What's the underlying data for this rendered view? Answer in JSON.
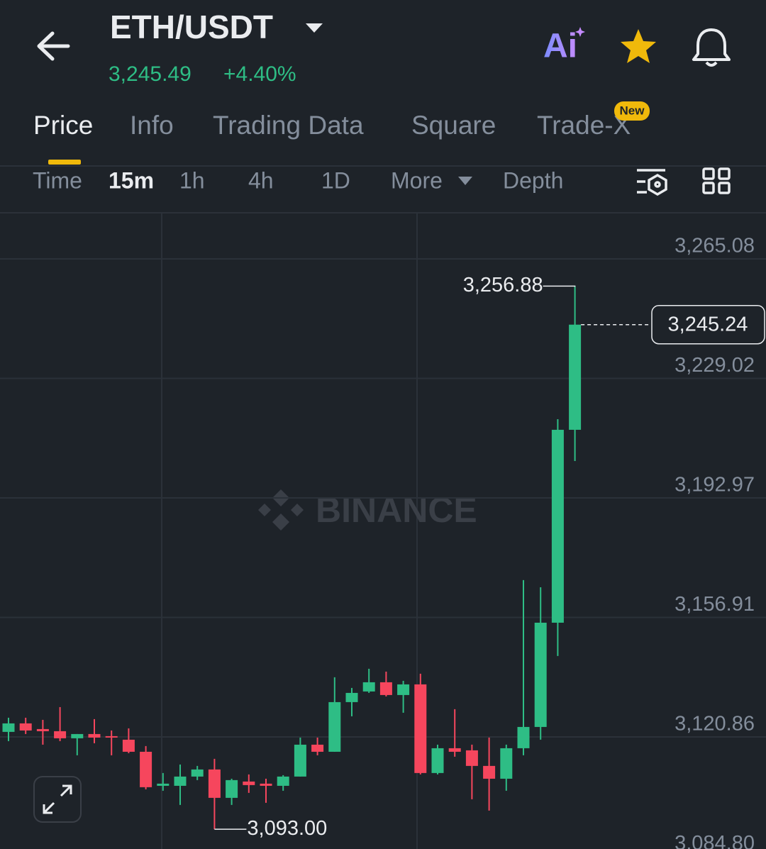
{
  "header": {
    "pair": "ETH/USDT",
    "price": "3,245.49",
    "change": "+4.40%",
    "ai": "Ai"
  },
  "tabs": {
    "items": [
      "Price",
      "Info",
      "Trading Data",
      "Square",
      "Trade-X"
    ],
    "badge": "New"
  },
  "intervals": [
    "Time",
    "15m",
    "1h",
    "4h",
    "1D",
    "More",
    "Depth"
  ],
  "watermark": "BINANCE",
  "chart_data": {
    "type": "candlestick",
    "up_color": "#2ebd85",
    "down_color": "#f6465d",
    "grid": true,
    "ylim": [
      3084.8,
      3278.99
    ],
    "yticks": [
      {
        "value": 3265.08,
        "label": "3,265.08"
      },
      {
        "value": 3229.02,
        "label": "3,229.02"
      },
      {
        "value": 3192.97,
        "label": "3,192.97"
      },
      {
        "value": 3156.91,
        "label": "3,156.91"
      },
      {
        "value": 3120.86,
        "label": "3,120.86"
      },
      {
        "value": 3084.8,
        "label": "3,084.80"
      }
    ],
    "open": [
      3122.38,
      3124.94,
      3123.23,
      3122.59,
      3120.45,
      3121.73,
      3121.09,
      3120.02,
      3116.38,
      3106.11,
      3106.11,
      3108.9,
      3111.04,
      3102.48,
      3107.4,
      3106.76,
      3106.11,
      3108.9,
      3118.52,
      3116.38,
      3131.36,
      3134.57,
      3137.35,
      3133.5,
      3136.71,
      3109.97,
      3117.45,
      3116.81,
      3112.11,
      3108.25,
      3117.45,
      3123.87,
      3155.32,
      3213.52
    ],
    "high": [
      3126.65,
      3126.65,
      3126.01,
      3129.86,
      3121.73,
      3126.23,
      3122.8,
      3123.44,
      3118.1,
      3109.97,
      3112.53,
      3112.11,
      3114.25,
      3108.25,
      3109.54,
      3108.25,
      3109.32,
      3120.66,
      3120.66,
      3138.85,
      3135.64,
      3141.42,
      3140.56,
      3137.78,
      3139.92,
      3118.52,
      3129.22,
      3118.52,
      3120.66,
      3118.52,
      3168.16,
      3166.02,
      3216.73,
      3256.88
    ],
    "low": [
      3119.59,
      3121.73,
      3118.52,
      3119.59,
      3115.31,
      3118.95,
      3115.31,
      3115.96,
      3105.05,
      3104.62,
      3100.34,
      3107.83,
      3093.0,
      3100.34,
      3103.98,
      3100.98,
      3104.62,
      3108.9,
      3115.31,
      3116.38,
      3127.08,
      3134.14,
      3133.07,
      3128.15,
      3109.54,
      3109.54,
      3114.89,
      3102.05,
      3098.63,
      3104.62,
      3115.31,
      3120.02,
      3145.27,
      3204.1
    ],
    "close": [
      3124.94,
      3122.8,
      3122.59,
      3120.45,
      3121.73,
      3120.66,
      3120.66,
      3116.38,
      3105.69,
      3106.76,
      3108.9,
      3111.04,
      3102.48,
      3107.83,
      3106.33,
      3106.11,
      3108.9,
      3118.52,
      3116.38,
      3131.36,
      3134.14,
      3137.35,
      3133.5,
      3136.71,
      3109.97,
      3117.45,
      3116.38,
      3112.11,
      3108.25,
      3117.45,
      3123.87,
      3155.32,
      3213.52,
      3245.24
    ],
    "annotations": {
      "high": {
        "value": 3256.88,
        "label": "3,256.88"
      },
      "low": {
        "value": 3093.0,
        "label": "3,093.00"
      },
      "last": {
        "value": 3245.24,
        "label": "3,245.24"
      }
    }
  }
}
